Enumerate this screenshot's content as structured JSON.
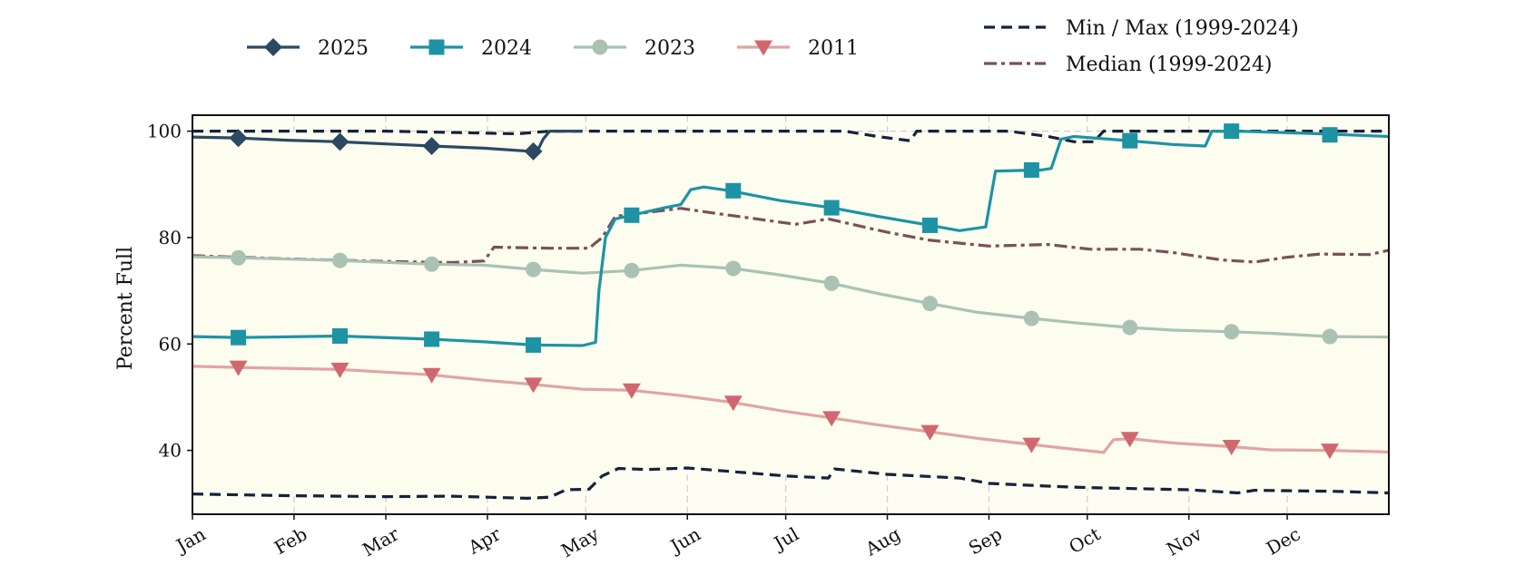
{
  "chart_data": {
    "type": "line",
    "title": "",
    "xlabel": "",
    "ylabel": "Percent Full",
    "x_axis": {
      "tick_labels": [
        "Jan",
        "Feb",
        "Mar",
        "Apr",
        "May",
        "Jun",
        "Jul",
        "Aug",
        "Sep",
        "Oct",
        "Nov",
        "Dec"
      ],
      "tick_days": [
        1,
        32,
        60,
        91,
        121,
        152,
        182,
        213,
        244,
        274,
        305,
        335
      ],
      "range_days": [
        1,
        366
      ]
    },
    "ylim": [
      28,
      103
    ],
    "y_ticks": [
      40,
      60,
      80,
      100
    ],
    "y_tick_labels": [
      "40",
      "60",
      "80",
      "100"
    ],
    "grid": true,
    "plot_background": "#fdfdf4",
    "legend_placement": "top",
    "band": {
      "name": "Min / Max (1999-2024)",
      "color": "#13233a",
      "style": "dashed",
      "fill": "#fcfcef",
      "max": [
        [
          1,
          100
        ],
        [
          60,
          100
        ],
        [
          100,
          99.5
        ],
        [
          110,
          100
        ],
        [
          200,
          100
        ],
        [
          210,
          99
        ],
        [
          220,
          98.2
        ],
        [
          222,
          100
        ],
        [
          250,
          100
        ],
        [
          262,
          99
        ],
        [
          270,
          98
        ],
        [
          276,
          98
        ],
        [
          279,
          100
        ],
        [
          366,
          100
        ]
      ],
      "min": [
        [
          1,
          31.8
        ],
        [
          20,
          31.6
        ],
        [
          30,
          31.5
        ],
        [
          60,
          31.3
        ],
        [
          80,
          31.4
        ],
        [
          91,
          31.2
        ],
        [
          103,
          31
        ],
        [
          110,
          31.2
        ],
        [
          115,
          32.6
        ],
        [
          122,
          32.7
        ],
        [
          126,
          35.2
        ],
        [
          131,
          36.6
        ],
        [
          140,
          36.4
        ],
        [
          152,
          36.7
        ],
        [
          182,
          35.2
        ],
        [
          195,
          34.8
        ],
        [
          197,
          36.5
        ],
        [
          213,
          35.5
        ],
        [
          235,
          34.8
        ],
        [
          244,
          33.8
        ],
        [
          265,
          33.2
        ],
        [
          275,
          33
        ],
        [
          305,
          32.6
        ],
        [
          320,
          32
        ],
        [
          325,
          32.5
        ],
        [
          350,
          32.3
        ],
        [
          366,
          32
        ]
      ]
    },
    "series": [
      {
        "name": "2025",
        "color": "#2b4a62",
        "marker": "diamond",
        "style": "solid",
        "points": [
          [
            1,
            98.9
          ],
          [
            15,
            98.7
          ],
          [
            30,
            98.3
          ],
          [
            46,
            98
          ],
          [
            60,
            97.6
          ],
          [
            74,
            97.2
          ],
          [
            90,
            96.8
          ],
          [
            102,
            96.3
          ],
          [
            106,
            96
          ],
          [
            108,
            98.5
          ],
          [
            110,
            100
          ],
          [
            120,
            100
          ]
        ],
        "marker_points": [
          [
            15,
            98.7
          ],
          [
            46,
            98
          ],
          [
            74,
            97.2
          ],
          [
            105,
            96.2
          ]
        ]
      },
      {
        "name": "2024",
        "color": "#1d93a4",
        "marker": "square",
        "style": "solid",
        "points": [
          [
            1,
            61.4
          ],
          [
            15,
            61.2
          ],
          [
            46,
            61.5
          ],
          [
            74,
            60.9
          ],
          [
            90,
            60.4
          ],
          [
            105,
            59.8
          ],
          [
            120,
            59.7
          ],
          [
            124,
            60.3
          ],
          [
            125,
            70
          ],
          [
            127,
            80
          ],
          [
            130,
            83.5
          ],
          [
            135,
            84.2
          ],
          [
            145,
            85.6
          ],
          [
            150,
            86.2
          ],
          [
            153,
            89
          ],
          [
            157,
            89.5
          ],
          [
            165,
            88.8
          ],
          [
            180,
            87
          ],
          [
            196,
            85.6
          ],
          [
            210,
            84
          ],
          [
            226,
            82.3
          ],
          [
            235,
            81.3
          ],
          [
            243,
            82
          ],
          [
            246,
            92.5
          ],
          [
            260,
            92.7
          ],
          [
            263,
            93
          ],
          [
            266,
            98.5
          ],
          [
            270,
            99
          ],
          [
            285,
            98.3
          ],
          [
            300,
            97.5
          ],
          [
            310,
            97.2
          ],
          [
            312,
            100
          ],
          [
            320,
            100
          ],
          [
            345,
            99.5
          ],
          [
            366,
            99
          ]
        ],
        "marker_points": [
          [
            15,
            61.2
          ],
          [
            46,
            61.5
          ],
          [
            74,
            60.9
          ],
          [
            105,
            59.8
          ],
          [
            135,
            84.2
          ],
          [
            166,
            88.8
          ],
          [
            196,
            85.6
          ],
          [
            226,
            82.3
          ],
          [
            257,
            92.7
          ],
          [
            287,
            98.2
          ],
          [
            318,
            100
          ],
          [
            348,
            99.3
          ]
        ]
      },
      {
        "name": "2023",
        "color": "#a9c2b4",
        "marker": "circle",
        "style": "solid",
        "points": [
          [
            1,
            76.4
          ],
          [
            15,
            76.2
          ],
          [
            46,
            75.7
          ],
          [
            74,
            75
          ],
          [
            90,
            74.8
          ],
          [
            105,
            74
          ],
          [
            120,
            73.3
          ],
          [
            135,
            73.8
          ],
          [
            150,
            74.8
          ],
          [
            166,
            74.2
          ],
          [
            180,
            73
          ],
          [
            196,
            71.4
          ],
          [
            210,
            69.5
          ],
          [
            226,
            67.6
          ],
          [
            240,
            66
          ],
          [
            257,
            64.8
          ],
          [
            270,
            64
          ],
          [
            287,
            63.1
          ],
          [
            300,
            62.6
          ],
          [
            318,
            62.3
          ],
          [
            330,
            62
          ],
          [
            348,
            61.4
          ],
          [
            366,
            61.3
          ]
        ],
        "marker_points": [
          [
            15,
            76.2
          ],
          [
            46,
            75.7
          ],
          [
            74,
            75
          ],
          [
            105,
            74
          ],
          [
            135,
            73.8
          ],
          [
            166,
            74.2
          ],
          [
            196,
            71.4
          ],
          [
            226,
            67.6
          ],
          [
            257,
            64.8
          ],
          [
            287,
            63.1
          ],
          [
            318,
            62.3
          ],
          [
            348,
            61.4
          ]
        ]
      },
      {
        "name": "2011",
        "color": "#e0a5a2",
        "marker_color": "#d1676e",
        "marker": "triangle-down",
        "style": "solid",
        "points": [
          [
            1,
            55.8
          ],
          [
            15,
            55.6
          ],
          [
            46,
            55.2
          ],
          [
            74,
            54.2
          ],
          [
            90,
            53.2
          ],
          [
            105,
            52.4
          ],
          [
            120,
            51.5
          ],
          [
            135,
            51.3
          ],
          [
            150,
            50.3
          ],
          [
            166,
            49
          ],
          [
            180,
            47.5
          ],
          [
            196,
            46.1
          ],
          [
            210,
            44.8
          ],
          [
            226,
            43.5
          ],
          [
            240,
            42.3
          ],
          [
            257,
            41.1
          ],
          [
            270,
            40.2
          ],
          [
            279,
            39.6
          ],
          [
            282,
            42
          ],
          [
            287,
            42.2
          ],
          [
            300,
            41.4
          ],
          [
            318,
            40.7
          ],
          [
            330,
            40.1
          ],
          [
            348,
            40
          ],
          [
            366,
            39.7
          ]
        ],
        "marker_points": [
          [
            15,
            55.6
          ],
          [
            46,
            55.2
          ],
          [
            74,
            54.2
          ],
          [
            105,
            52.4
          ],
          [
            135,
            51.3
          ],
          [
            166,
            49
          ],
          [
            196,
            46.1
          ],
          [
            226,
            43.5
          ],
          [
            257,
            41.1
          ],
          [
            287,
            42.2
          ],
          [
            318,
            40.7
          ],
          [
            348,
            40
          ]
        ]
      },
      {
        "name": "Median (1999-2024)",
        "color": "#7a5158",
        "marker": "none",
        "style": "dashdot",
        "points": [
          [
            1,
            76.6
          ],
          [
            30,
            76
          ],
          [
            60,
            75.5
          ],
          [
            80,
            75.3
          ],
          [
            90,
            75.6
          ],
          [
            93,
            78.2
          ],
          [
            110,
            78
          ],
          [
            122,
            78
          ],
          [
            126,
            80
          ],
          [
            130,
            84
          ],
          [
            150,
            85.5
          ],
          [
            160,
            84.6
          ],
          [
            185,
            82.5
          ],
          [
            195,
            83.5
          ],
          [
            213,
            81
          ],
          [
            226,
            79.5
          ],
          [
            244,
            78.4
          ],
          [
            262,
            78.7
          ],
          [
            275,
            77.8
          ],
          [
            290,
            77.8
          ],
          [
            300,
            77.2
          ],
          [
            315,
            75.8
          ],
          [
            325,
            75.4
          ],
          [
            335,
            76.3
          ],
          [
            345,
            76.9
          ],
          [
            360,
            76.8
          ],
          [
            366,
            77.6
          ]
        ]
      }
    ]
  }
}
